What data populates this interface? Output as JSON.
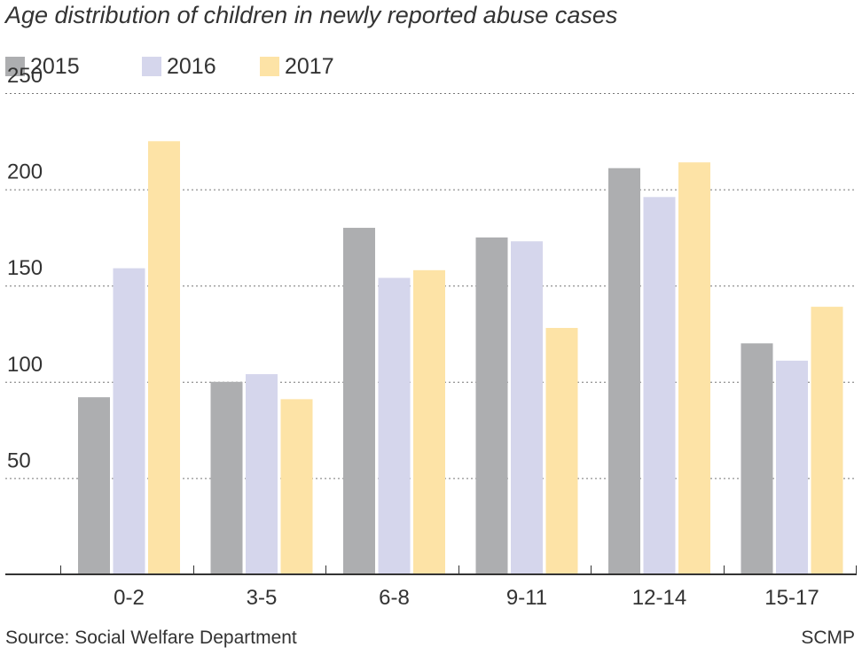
{
  "title": "Age distribution of children in newly reported abuse cases",
  "source": "Source: Social Welfare Department",
  "credit": "SCMP",
  "colors": {
    "2015": "#adaeb0",
    "2016": "#d5d6ec",
    "2017": "#fde3a6"
  },
  "chart_data": {
    "type": "bar",
    "title": "Age distribution of children in newly reported abuse cases",
    "xlabel": "",
    "ylabel": "",
    "ylim": [
      0,
      250
    ],
    "yticks": [
      50,
      100,
      150,
      200,
      250
    ],
    "categories": [
      "0-2",
      "3-5",
      "6-8",
      "9-11",
      "12-14",
      "15-17"
    ],
    "series": [
      {
        "name": "2015",
        "values": [
          92,
          100,
          180,
          175,
          211,
          120
        ]
      },
      {
        "name": "2016",
        "values": [
          159,
          104,
          154,
          173,
          196,
          111
        ]
      },
      {
        "name": "2017",
        "values": [
          225,
          91,
          158,
          128,
          214,
          139
        ]
      }
    ],
    "grid": true,
    "legend": "top-left"
  }
}
